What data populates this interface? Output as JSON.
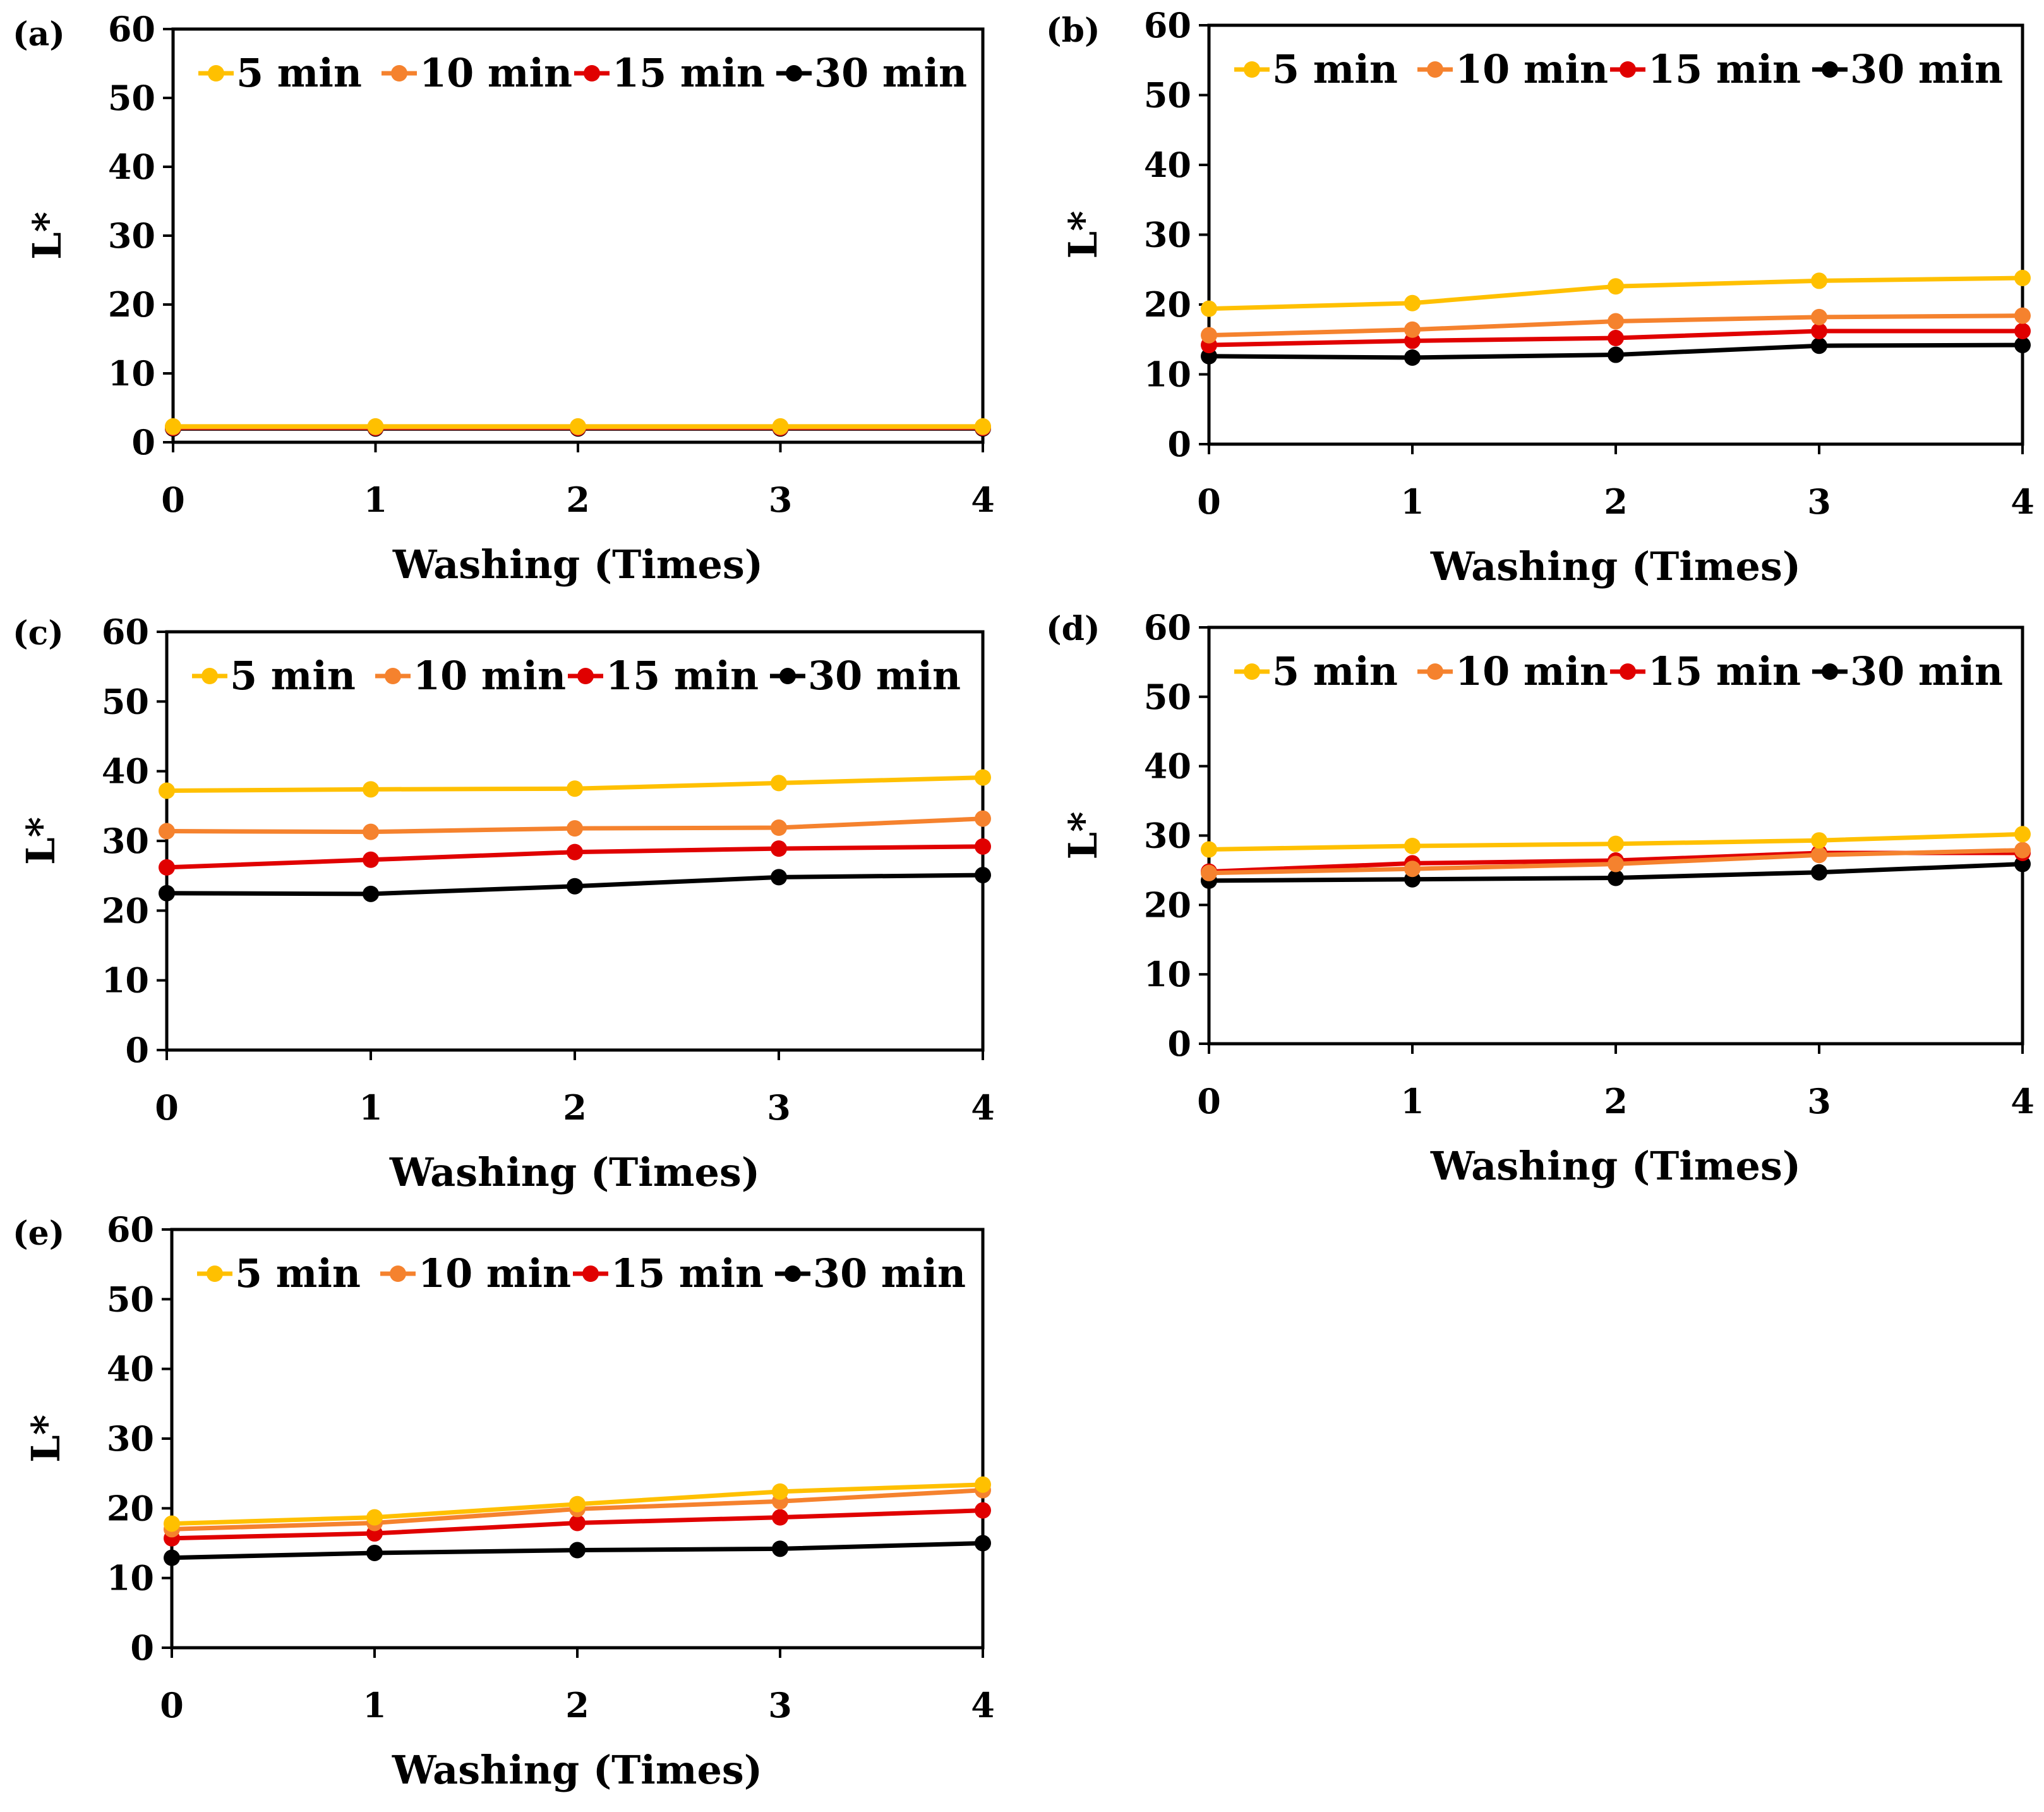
{
  "colors": {
    "5 min": "#FFC000",
    "10 min": "#F5822E",
    "15 min": "#E00000",
    "30 min": "#000000"
  },
  "chart_data": [
    {
      "type": "line",
      "panel_label": "(a)",
      "xlabel": "Washing (Times)",
      "ylabel": "L*",
      "x": [
        0,
        1,
        2,
        3,
        4
      ],
      "xlim": [
        0,
        4
      ],
      "ylim": [
        0,
        60
      ],
      "yticks": [
        0,
        10,
        20,
        30,
        40,
        50,
        60
      ],
      "grid": false,
      "legend": "top",
      "series": [
        {
          "name": "5 min",
          "values": [
            2.3,
            2.3,
            2.3,
            2.3,
            2.3
          ]
        },
        {
          "name": "10 min",
          "values": [
            2.2,
            2.2,
            2.2,
            2.2,
            2.2
          ]
        },
        {
          "name": "15 min",
          "values": [
            2.1,
            2.1,
            2.1,
            2.1,
            2.1
          ]
        },
        {
          "name": "30 min",
          "values": [
            2.0,
            2.0,
            2.0,
            2.0,
            2.0
          ]
        }
      ]
    },
    {
      "type": "line",
      "panel_label": "(b)",
      "xlabel": "Washing (Times)",
      "ylabel": "L*",
      "x": [
        0,
        1,
        2,
        3,
        4
      ],
      "xlim": [
        0,
        4
      ],
      "ylim": [
        0,
        60
      ],
      "yticks": [
        0,
        10,
        20,
        30,
        40,
        50,
        60
      ],
      "grid": false,
      "legend": "top",
      "series": [
        {
          "name": "5 min",
          "values": [
            19.4,
            20.2,
            22.6,
            23.4,
            23.8
          ]
        },
        {
          "name": "10 min",
          "values": [
            15.6,
            16.4,
            17.6,
            18.2,
            18.4
          ]
        },
        {
          "name": "15 min",
          "values": [
            14.2,
            14.8,
            15.2,
            16.2,
            16.2
          ]
        },
        {
          "name": "30 min",
          "values": [
            12.6,
            12.4,
            12.8,
            14.1,
            14.2
          ]
        }
      ]
    },
    {
      "type": "line",
      "panel_label": "(c)",
      "xlabel": "Washing (Times)",
      "ylabel": "L*",
      "x": [
        0,
        1,
        2,
        3,
        4
      ],
      "xlim": [
        0,
        4
      ],
      "ylim": [
        0,
        60
      ],
      "yticks": [
        0,
        10,
        20,
        30,
        40,
        50,
        60
      ],
      "grid": false,
      "legend": "top",
      "series": [
        {
          "name": "5 min",
          "values": [
            37.2,
            37.4,
            37.5,
            38.3,
            39.1
          ]
        },
        {
          "name": "10 min",
          "values": [
            31.4,
            31.3,
            31.8,
            31.9,
            33.2
          ]
        },
        {
          "name": "15 min",
          "values": [
            26.2,
            27.3,
            28.4,
            28.9,
            29.2
          ]
        },
        {
          "name": "30 min",
          "values": [
            22.5,
            22.4,
            23.5,
            24.8,
            25.1
          ]
        }
      ]
    },
    {
      "type": "line",
      "panel_label": "(d)",
      "xlabel": "Washing (Times)",
      "ylabel": "L*",
      "x": [
        0,
        1,
        2,
        3,
        4
      ],
      "xlim": [
        0,
        4
      ],
      "ylim": [
        0,
        60
      ],
      "yticks": [
        0,
        10,
        20,
        30,
        40,
        50,
        60
      ],
      "grid": false,
      "legend": "top",
      "series": [
        {
          "name": "5 min",
          "values": [
            28.0,
            28.5,
            28.8,
            29.3,
            30.2
          ]
        },
        {
          "name": "10 min",
          "values": [
            24.6,
            25.2,
            25.9,
            27.2,
            27.9
          ]
        },
        {
          "name": "15 min",
          "values": [
            24.8,
            26.0,
            26.4,
            27.5,
            27.5
          ]
        },
        {
          "name": "30 min",
          "values": [
            23.5,
            23.7,
            23.9,
            24.7,
            25.9
          ]
        }
      ]
    },
    {
      "type": "line",
      "panel_label": "(e)",
      "xlabel": "Washing (Times)",
      "ylabel": "L*",
      "x": [
        0,
        1,
        2,
        3,
        4
      ],
      "xlim": [
        0,
        4
      ],
      "ylim": [
        0,
        60
      ],
      "yticks": [
        0,
        10,
        20,
        30,
        40,
        50,
        60
      ],
      "grid": false,
      "legend": "top",
      "series": [
        {
          "name": "5 min",
          "values": [
            17.8,
            18.7,
            20.6,
            22.4,
            23.4
          ]
        },
        {
          "name": "10 min",
          "values": [
            17.0,
            17.9,
            19.9,
            21.0,
            22.6
          ]
        },
        {
          "name": "15 min",
          "values": [
            15.7,
            16.4,
            17.9,
            18.7,
            19.7
          ]
        },
        {
          "name": "30 min",
          "values": [
            12.9,
            13.6,
            14.0,
            14.2,
            15.0
          ]
        }
      ]
    }
  ]
}
